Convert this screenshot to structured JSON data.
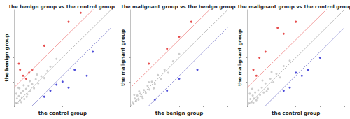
{
  "chart_data": [
    {
      "type": "scatter",
      "title": "the benign group vs the control group",
      "x_label": "the control group",
      "y_label": "the benign group",
      "xlim": [
        0,
        16
      ],
      "ylim": [
        0,
        16
      ],
      "xticks": [
        0,
        4,
        8,
        12,
        16
      ],
      "yticks": [
        0,
        4,
        8,
        12,
        16
      ],
      "tick_labels": false,
      "reference_lines": [
        {
          "offset": 3,
          "color": "#f08a8a"
        },
        {
          "offset": 0,
          "color": "#b0b0b0"
        },
        {
          "offset": -3,
          "color": "#8a8ad0"
        }
      ],
      "series": [
        {
          "color": "#c0c0c0",
          "x": [
            0.3,
            0.5,
            0.6,
            0.8,
            1.0,
            1.1,
            1.3,
            1.5,
            1.7,
            2.0,
            2.2,
            2.4,
            2.7,
            3.0,
            3.3,
            3.6,
            4.0,
            4.5,
            5.0,
            5.5,
            6.0,
            7.0,
            0.4,
            0.9,
            1.6,
            2.6,
            3.8,
            1.2,
            2.1,
            0.7
          ],
          "values": [
            0.5,
            1.2,
            0.4,
            1.6,
            0.9,
            2.1,
            1.4,
            2.5,
            1.1,
            2.8,
            1.9,
            3.3,
            2.4,
            3.6,
            2.9,
            4.4,
            3.7,
            4.9,
            4.6,
            5.8,
            6.5,
            7.8,
            2.0,
            2.9,
            3.4,
            4.1,
            5.2,
            0.6,
            1.5,
            3.0
          ]
        },
        {
          "color": "#e02020",
          "x": [
            0.8,
            1.0,
            1.5,
            2.0,
            2.5,
            3.0,
            5.0,
            9.0,
            11.0
          ],
          "values": [
            7.0,
            6.0,
            5.0,
            4.5,
            5.5,
            6.0,
            10.0,
            14.0,
            15.5
          ]
        },
        {
          "color": "#2020d0",
          "x": [
            5.0,
            6.0,
            7.0,
            8.0,
            9.0,
            10.0,
            12.0,
            13.0
          ],
          "values": [
            1.5,
            2.5,
            3.5,
            4.0,
            3.0,
            6.0,
            5.0,
            9.0
          ]
        }
      ]
    },
    {
      "type": "scatter",
      "title": "the malignant group vs the benign group",
      "x_label": "the benign group",
      "y_label": "the malignant group",
      "xlim": [
        0,
        16
      ],
      "ylim": [
        0,
        16
      ],
      "xticks": [
        0,
        4,
        8,
        12,
        16
      ],
      "yticks": [
        0,
        4,
        8,
        12,
        16
      ],
      "tick_labels": false,
      "reference_lines": [
        {
          "offset": 3,
          "color": "#f08a8a"
        },
        {
          "offset": 0,
          "color": "#b0b0b0"
        },
        {
          "offset": -3,
          "color": "#8a8ad0"
        }
      ],
      "series": [
        {
          "color": "#c0c0c0",
          "x": [
            0.3,
            0.5,
            0.7,
            0.9,
            1.1,
            1.3,
            1.6,
            1.9,
            2.2,
            2.5,
            2.8,
            3.1,
            3.5,
            4.0,
            4.5,
            5.0,
            5.6,
            6.2,
            7.0,
            8.0,
            0.6,
            1.4,
            2.0,
            3.0,
            3.8
          ],
          "values": [
            0.6,
            0.3,
            1.2,
            0.8,
            1.7,
            1.0,
            2.0,
            1.5,
            2.6,
            2.1,
            3.3,
            2.7,
            4.0,
            3.6,
            5.1,
            4.4,
            6.0,
            5.5,
            7.4,
            8.6,
            1.8,
            2.4,
            1.2,
            3.9,
            2.9
          ]
        },
        {
          "color": "#e02020",
          "x": [
            3.0,
            6.0,
            8.0,
            10.0
          ],
          "values": [
            7.0,
            9.5,
            11.5,
            14.0
          ]
        },
        {
          "color": "#2020d0",
          "x": [
            4.0,
            6.0,
            8.0,
            11.0
          ],
          "values": [
            1.0,
            2.5,
            4.5,
            6.0
          ]
        }
      ]
    },
    {
      "type": "scatter",
      "title": "the malignant group vs the control group",
      "x_label": "the control group",
      "y_label": "the malignant group",
      "xlim": [
        0,
        16
      ],
      "ylim": [
        0,
        16
      ],
      "xticks": [
        0,
        4,
        8,
        12,
        16
      ],
      "yticks": [
        0,
        4,
        8,
        12,
        16
      ],
      "tick_labels": false,
      "reference_lines": [
        {
          "offset": 3,
          "color": "#f08a8a"
        },
        {
          "offset": 0,
          "color": "#b0b0b0"
        },
        {
          "offset": -3,
          "color": "#8a8ad0"
        }
      ],
      "series": [
        {
          "color": "#c0c0c0",
          "x": [
            0.3,
            0.5,
            0.7,
            0.9,
            1.1,
            1.3,
            1.5,
            1.8,
            2.1,
            2.4,
            2.7,
            3.0,
            3.4,
            3.8,
            4.3,
            4.8,
            5.4,
            6.0,
            7.0,
            0.4,
            1.0,
            1.7,
            2.5,
            3.2,
            4.0,
            0.8
          ],
          "values": [
            0.4,
            1.1,
            0.6,
            1.7,
            1.2,
            2.2,
            0.9,
            2.6,
            1.8,
            3.0,
            2.2,
            3.7,
            2.8,
            4.5,
            3.9,
            5.3,
            4.7,
            6.6,
            7.5,
            2.0,
            0.5,
            1.3,
            4.2,
            2.4,
            5.6,
            2.8
          ]
        },
        {
          "color": "#e02020",
          "x": [
            1.0,
            1.5,
            2.0,
            3.0,
            5.0,
            6.0,
            8.0
          ],
          "values": [
            6.0,
            5.0,
            8.0,
            9.0,
            13.0,
            12.0,
            14.0
          ]
        },
        {
          "color": "#2020d0",
          "x": [
            6.0,
            7.0,
            8.0,
            9.0,
            10.0,
            12.0
          ],
          "values": [
            2.5,
            3.0,
            5.5,
            5.0,
            6.0,
            8.0
          ]
        }
      ]
    }
  ]
}
